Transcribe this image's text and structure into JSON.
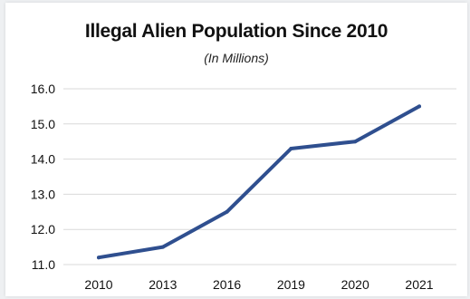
{
  "chart_data": {
    "type": "line",
    "title": "Illegal Alien Population Since 2010",
    "subtitle": "(In Millions)",
    "xlabel": "",
    "ylabel": "",
    "categories": [
      "2010",
      "2013",
      "2016",
      "2019",
      "2020",
      "2021"
    ],
    "series": [
      {
        "values": [
          11.2,
          11.5,
          12.5,
          14.3,
          14.5,
          15.5
        ]
      }
    ],
    "ylim": [
      11.0,
      16.0
    ],
    "yticks": [
      "11.0",
      "12.0",
      "13.0",
      "14.0",
      "15.0",
      "16.0"
    ],
    "grid": true,
    "legend": "none",
    "colors": {
      "line": "#2f4f8f",
      "grid": "#d9d9d9",
      "background": "#ffffff"
    }
  }
}
